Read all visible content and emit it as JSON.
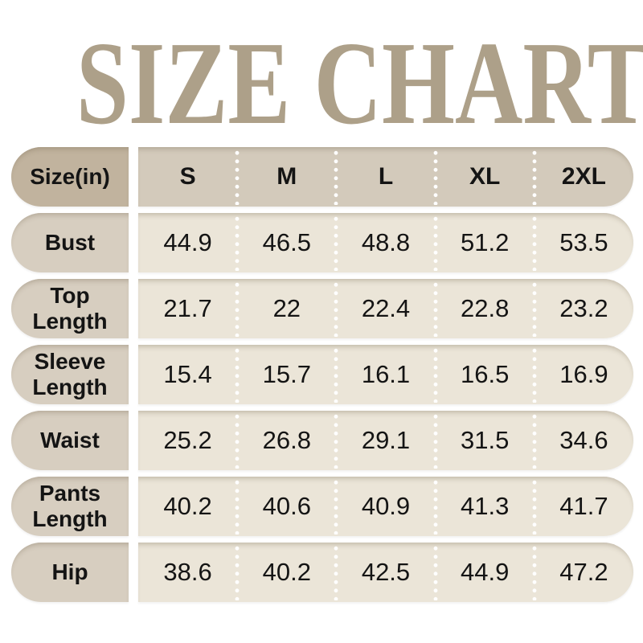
{
  "title": "SIZE CHART",
  "theme": {
    "page_bg": "#ffffff",
    "title_color": "#ada089",
    "header_label_bg": "#c1b39e",
    "header_strip_bg": "#d3cabb",
    "row_label_bg": "#d7cec0",
    "row_strip_bg": "#ebe5d8",
    "text_color": "#141414",
    "separator_dot_color": "#ffffff"
  },
  "chart_data": {
    "type": "table",
    "title": "SIZE CHART",
    "header": {
      "label": "Size(in)",
      "columns": [
        "S",
        "M",
        "L",
        "XL",
        "2XL"
      ]
    },
    "rows": [
      {
        "label": "Bust",
        "values": [
          "44.9",
          "46.5",
          "48.8",
          "51.2",
          "53.5"
        ]
      },
      {
        "label": "Top Length",
        "values": [
          "21.7",
          "22",
          "22.4",
          "22.8",
          "23.2"
        ]
      },
      {
        "label": "Sleeve Length",
        "values": [
          "15.4",
          "15.7",
          "16.1",
          "16.5",
          "16.9"
        ]
      },
      {
        "label": "Waist",
        "values": [
          "25.2",
          "26.8",
          "29.1",
          "31.5",
          "34.6"
        ]
      },
      {
        "label": "Pants Length",
        "values": [
          "40.2",
          "40.6",
          "40.9",
          "41.3",
          "41.7"
        ]
      },
      {
        "label": "Hip",
        "values": [
          "38.6",
          "40.2",
          "42.5",
          "44.9",
          "47.2"
        ]
      }
    ]
  }
}
